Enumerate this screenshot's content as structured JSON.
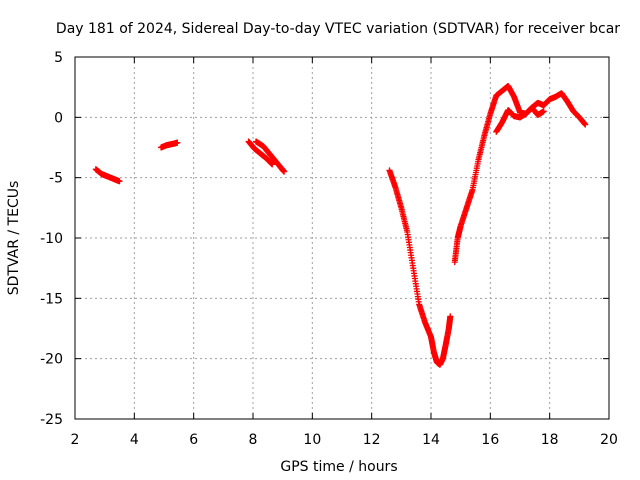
{
  "chart_data": {
    "type": "scatter",
    "title": "Day 181 of 2024, Sidereal Day-to-day VTEC variation (SDTVAR) for receiver bcar",
    "xlabel": "GPS time / hours",
    "ylabel": "SDTVAR / TECUs",
    "xlim": [
      2,
      20
    ],
    "ylim": [
      -25,
      5
    ],
    "xticks": [
      2,
      4,
      6,
      8,
      10,
      12,
      14,
      16,
      18,
      20
    ],
    "yticks": [
      5,
      0,
      -5,
      -10,
      -15,
      -20,
      -25
    ],
    "grid": true,
    "marker": "+",
    "marker_color": "#ff0000",
    "series": [
      {
        "name": "segment-1",
        "x": [
          2.7,
          2.9,
          3.1,
          3.3,
          3.5
        ],
        "y": [
          -4.3,
          -4.7,
          -4.9,
          -5.1,
          -5.3
        ]
      },
      {
        "name": "segment-2",
        "x": [
          4.9,
          5.1,
          5.3,
          5.45
        ],
        "y": [
          -2.5,
          -2.3,
          -2.2,
          -2.1
        ]
      },
      {
        "name": "segment-3a",
        "x": [
          7.85,
          8.05,
          8.25,
          8.45,
          8.65
        ],
        "y": [
          -2.0,
          -2.6,
          -3.0,
          -3.4,
          -3.9
        ]
      },
      {
        "name": "segment-3b",
        "x": [
          8.1,
          8.35,
          8.55,
          8.75,
          8.95,
          9.05
        ],
        "y": [
          -2.0,
          -2.4,
          -3.0,
          -3.6,
          -4.2,
          -4.5
        ]
      },
      {
        "name": "segment-4",
        "x": [
          12.6,
          12.8,
          13.0,
          13.2,
          13.4,
          13.6,
          13.8,
          14.0,
          14.1,
          14.2,
          14.3,
          14.4,
          14.5,
          14.6,
          14.65
        ],
        "y": [
          -4.4,
          -5.8,
          -7.5,
          -9.5,
          -12.5,
          -15.5,
          -17.0,
          -18.2,
          -19.5,
          -20.3,
          -20.5,
          -20.0,
          -18.8,
          -17.5,
          -16.5
        ]
      },
      {
        "name": "segment-5",
        "x": [
          14.8,
          14.9,
          15.0,
          15.2,
          15.4,
          15.6,
          15.8,
          16.0,
          16.2,
          16.4,
          16.6,
          16.8,
          17.0,
          17.2,
          17.4,
          17.6,
          17.8,
          18.0,
          18.2,
          18.4,
          18.6,
          18.8,
          19.0,
          19.2
        ],
        "y": [
          -12.0,
          -10.0,
          -9.0,
          -7.5,
          -6.0,
          -3.5,
          -1.5,
          0.3,
          1.8,
          2.2,
          2.6,
          1.7,
          0.4,
          0.3,
          0.8,
          1.2,
          1.0,
          1.5,
          1.7,
          2.0,
          1.3,
          0.5,
          0.0,
          -0.6
        ]
      },
      {
        "name": "segment-5b",
        "x": [
          16.2,
          16.4,
          16.6,
          16.8,
          17.0,
          17.2,
          17.4,
          17.6,
          17.8
        ],
        "y": [
          -1.2,
          -0.4,
          0.6,
          0.1,
          0.0,
          0.3,
          0.8,
          0.2,
          0.5
        ]
      }
    ]
  }
}
